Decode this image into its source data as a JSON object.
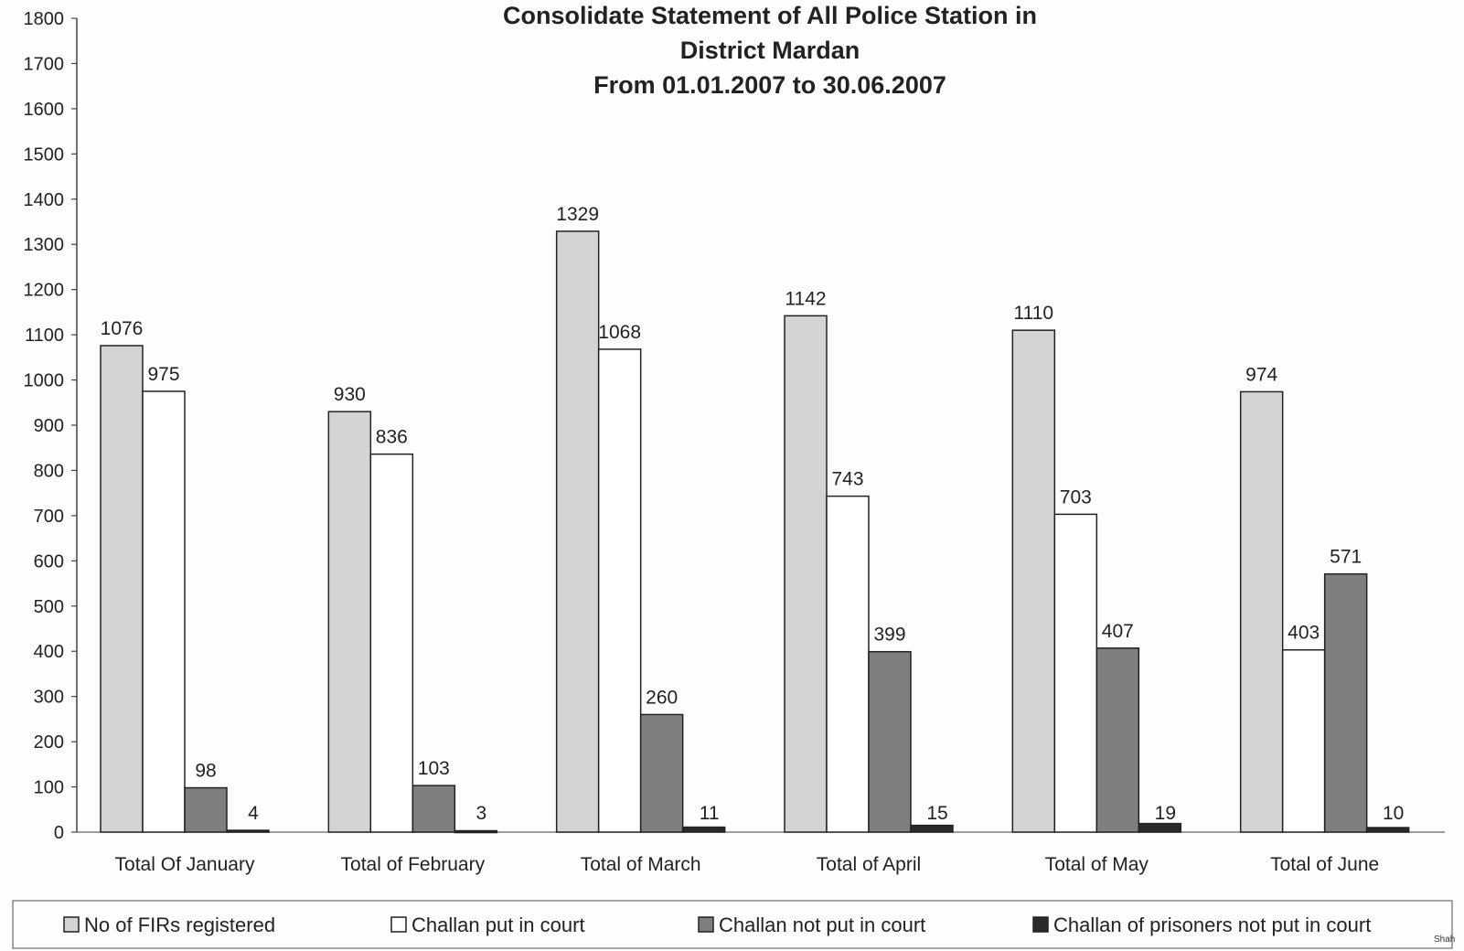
{
  "chart_data": {
    "type": "bar",
    "title_lines": [
      "Consolidate Statement of All Police Station in",
      "District Mardan",
      "From 01.01.2007 to 30.06.2007"
    ],
    "xlabel": "",
    "ylabel": "",
    "ylim": [
      0,
      1800
    ],
    "yticks": [
      0,
      100,
      200,
      300,
      400,
      500,
      600,
      700,
      800,
      900,
      1000,
      1100,
      1200,
      1300,
      1400,
      1500,
      1600,
      1700,
      1800
    ],
    "grid": false,
    "legend_position": "bottom",
    "categories": [
      "Total Of January",
      "Total of February",
      "Total of March",
      "Total of April",
      "Total of May",
      "Total of June"
    ],
    "series": [
      {
        "name": "No of FIRs registered",
        "color": "#d4d4d4",
        "values": [
          1076,
          930,
          1329,
          1142,
          1110,
          974
        ]
      },
      {
        "name": "Challan put in court",
        "color": "#ffffff",
        "values": [
          975,
          836,
          1068,
          743,
          703,
          403
        ]
      },
      {
        "name": "Challan not put in court",
        "color": "#7f7f7f",
        "values": [
          98,
          103,
          260,
          399,
          407,
          571
        ]
      },
      {
        "name": "Challan of prisoners not put in court",
        "color": "#2a2a2a",
        "values": [
          4,
          3,
          11,
          15,
          19,
          10
        ]
      }
    ],
    "footer_note": "Shah"
  }
}
